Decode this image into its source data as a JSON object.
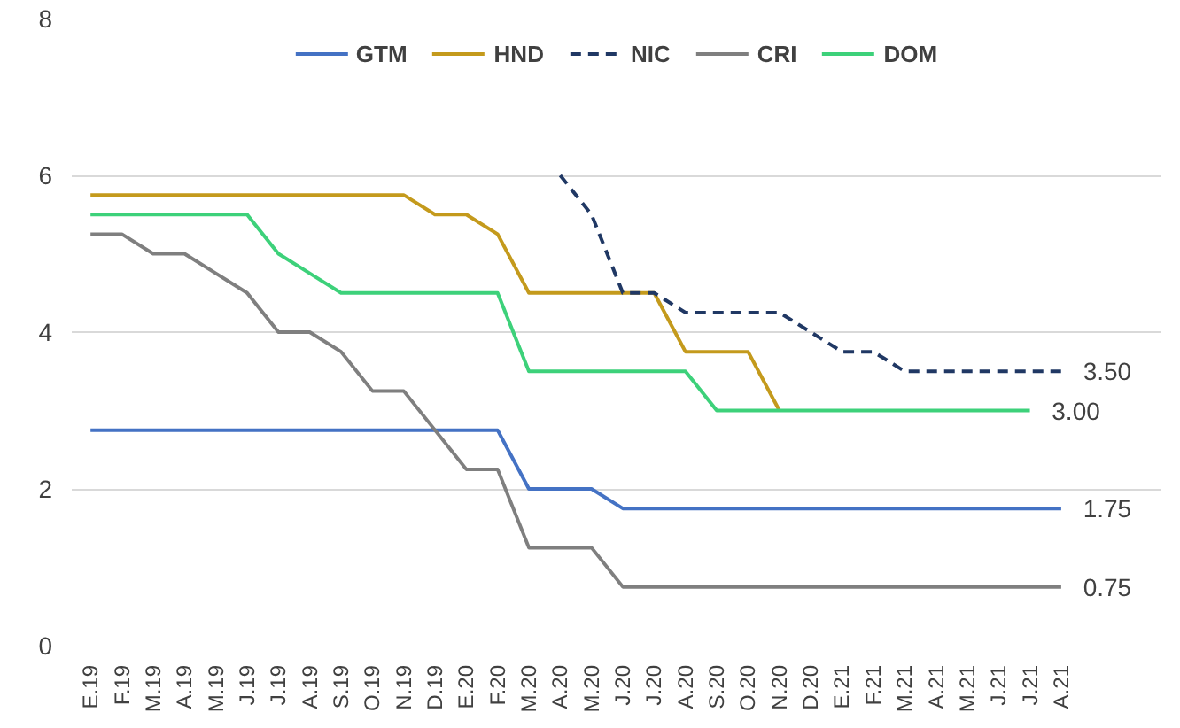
{
  "chart_data": {
    "type": "line",
    "categories": [
      "E.19",
      "F.19",
      "M.19",
      "A.19",
      "M.19",
      "J.19",
      "J.19",
      "A.19",
      "S.19",
      "O.19",
      "N.19",
      "D.19",
      "E.20",
      "F.20",
      "M.20",
      "A.20",
      "M.20",
      "J.20",
      "J.20",
      "A.20",
      "S.20",
      "O.20",
      "N.20",
      "D.20",
      "E.21",
      "F.21",
      "M.21",
      "A.21",
      "M.21",
      "J.21",
      "J.21",
      "A.21"
    ],
    "series": [
      {
        "name": "GTM",
        "color": "#4472c4",
        "line_style": "solid",
        "values": [
          2.75,
          2.75,
          2.75,
          2.75,
          2.75,
          2.75,
          2.75,
          2.75,
          2.75,
          2.75,
          2.75,
          2.75,
          2.75,
          2.75,
          2.0,
          2.0,
          2.0,
          1.75,
          1.75,
          1.75,
          1.75,
          1.75,
          1.75,
          1.75,
          1.75,
          1.75,
          1.75,
          1.75,
          1.75,
          1.75,
          1.75,
          1.75
        ],
        "value_labels": [
          null,
          null,
          null,
          null,
          null,
          null,
          null,
          null,
          null,
          null,
          null,
          null,
          null,
          null,
          null,
          null,
          null,
          null,
          null,
          null,
          null,
          null,
          null,
          null,
          null,
          null,
          null,
          null,
          null,
          null,
          null,
          "1.75"
        ]
      },
      {
        "name": "HND",
        "color": "#c49a1c",
        "line_style": "solid",
        "values": [
          5.75,
          5.75,
          5.75,
          5.75,
          5.75,
          5.75,
          5.75,
          5.75,
          5.75,
          5.75,
          5.75,
          5.5,
          5.5,
          5.25,
          4.5,
          4.5,
          4.5,
          4.5,
          4.5,
          3.75,
          3.75,
          3.75,
          3.0,
          null,
          null,
          null,
          null,
          null,
          null,
          null,
          null,
          null
        ]
      },
      {
        "name": "NIC",
        "color": "#203864",
        "line_style": "dashed",
        "values": [
          null,
          null,
          null,
          null,
          null,
          null,
          null,
          null,
          null,
          null,
          null,
          null,
          null,
          null,
          null,
          6.0,
          5.5,
          4.5,
          4.5,
          4.25,
          4.25,
          4.25,
          4.25,
          4.0,
          3.75,
          3.75,
          3.5,
          3.5,
          3.5,
          3.5,
          3.5,
          3.5
        ],
        "value_labels": [
          null,
          null,
          null,
          null,
          null,
          null,
          null,
          null,
          null,
          null,
          null,
          null,
          null,
          null,
          null,
          null,
          null,
          null,
          null,
          null,
          null,
          null,
          null,
          null,
          null,
          null,
          null,
          null,
          null,
          null,
          null,
          "3.50"
        ]
      },
      {
        "name": "CRI",
        "color": "#7f7f7f",
        "line_style": "solid",
        "values": [
          5.25,
          5.25,
          5.0,
          5.0,
          4.75,
          4.5,
          4.0,
          4.0,
          3.75,
          3.25,
          3.25,
          2.75,
          2.25,
          2.25,
          1.25,
          1.25,
          1.25,
          0.75,
          0.75,
          0.75,
          0.75,
          0.75,
          0.75,
          0.75,
          0.75,
          0.75,
          0.75,
          0.75,
          0.75,
          0.75,
          0.75,
          0.75
        ],
        "value_labels": [
          null,
          null,
          null,
          null,
          null,
          null,
          null,
          null,
          null,
          null,
          null,
          null,
          null,
          null,
          null,
          null,
          null,
          null,
          null,
          null,
          null,
          null,
          null,
          null,
          null,
          null,
          null,
          null,
          null,
          null,
          null,
          "0.75"
        ]
      },
      {
        "name": "DOM",
        "color": "#3dd17a",
        "line_style": "solid",
        "values": [
          5.5,
          5.5,
          5.5,
          5.5,
          5.5,
          5.5,
          5.0,
          4.75,
          4.5,
          4.5,
          4.5,
          4.5,
          4.5,
          4.5,
          3.5,
          3.5,
          3.5,
          3.5,
          3.5,
          3.5,
          3.0,
          3.0,
          3.0,
          3.0,
          3.0,
          3.0,
          3.0,
          3.0,
          3.0,
          3.0,
          3.0,
          null
        ],
        "value_labels": [
          null,
          null,
          null,
          null,
          null,
          null,
          null,
          null,
          null,
          null,
          null,
          null,
          null,
          null,
          null,
          null,
          null,
          null,
          null,
          null,
          null,
          null,
          null,
          null,
          null,
          null,
          null,
          null,
          null,
          null,
          "3.00",
          null
        ]
      }
    ],
    "ylim": [
      0,
      8
    ],
    "yticks": [
      0,
      2,
      4,
      6,
      8
    ],
    "grid": "y",
    "legend": "top",
    "marker": "none"
  }
}
